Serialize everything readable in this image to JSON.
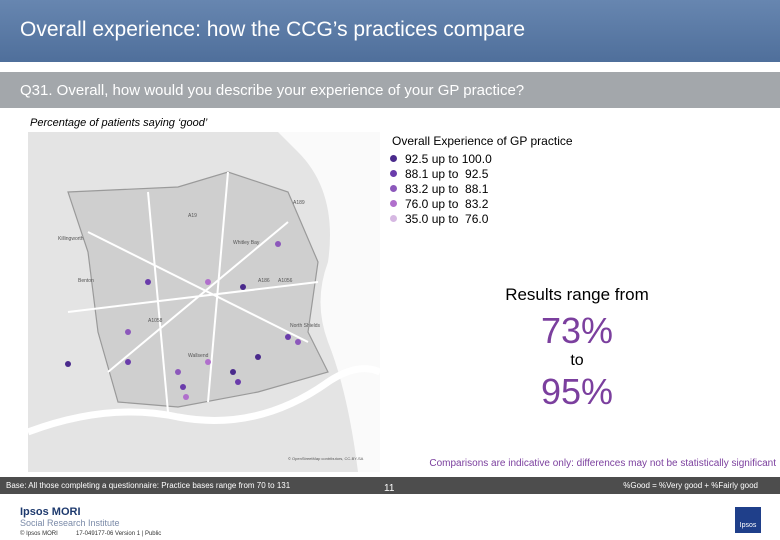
{
  "header": {
    "title": "Overall experience: how the CCG’s practices compare"
  },
  "question": "Q31. Overall, how would you describe your experience of your GP practice?",
  "subtitle": "Percentage of patients saying ‘good’",
  "map": {
    "labels": [
      "Killingworth",
      "Whitley Bay",
      "Benton",
      "Wallsend",
      "North Shields",
      "A19",
      "A189",
      "A1056",
      "A186",
      "A1058"
    ],
    "attribution": "© OpenStreetMap contributors, CC-BY-SA"
  },
  "legend": {
    "title": "Overall Experience of GP practice",
    "items": [
      {
        "label": "92.5 up to 100.0",
        "color": "#4a2a8c"
      },
      {
        "label": "88.1 up to  92.5",
        "color": "#6a3cab"
      },
      {
        "label": "83.2 up to  88.1",
        "color": "#8c58bb"
      },
      {
        "label": "76.0 up to  83.2",
        "color": "#b06fcc"
      },
      {
        "label": "35.0 up to  76.0",
        "color": "#d6b8e2"
      }
    ]
  },
  "results": {
    "intro": "Results range from",
    "low": "73%",
    "to": "to",
    "high": "95%"
  },
  "comparison_note": "Comparisons are indicative only: differences may not be statistically significant",
  "base_bar": {
    "base": "Base: All those completing a questionnaire: Practice bases range from 70 to 131",
    "definition": "%Good = %Very good + %Fairly good"
  },
  "footer": {
    "logo": "Ipsos MORI",
    "institute": "Social Research Institute",
    "copyright": "© Ipsos MORI",
    "reference": "17-049177-06 Version 1 | Public",
    "page": "11",
    "badge": "Ipsos"
  }
}
